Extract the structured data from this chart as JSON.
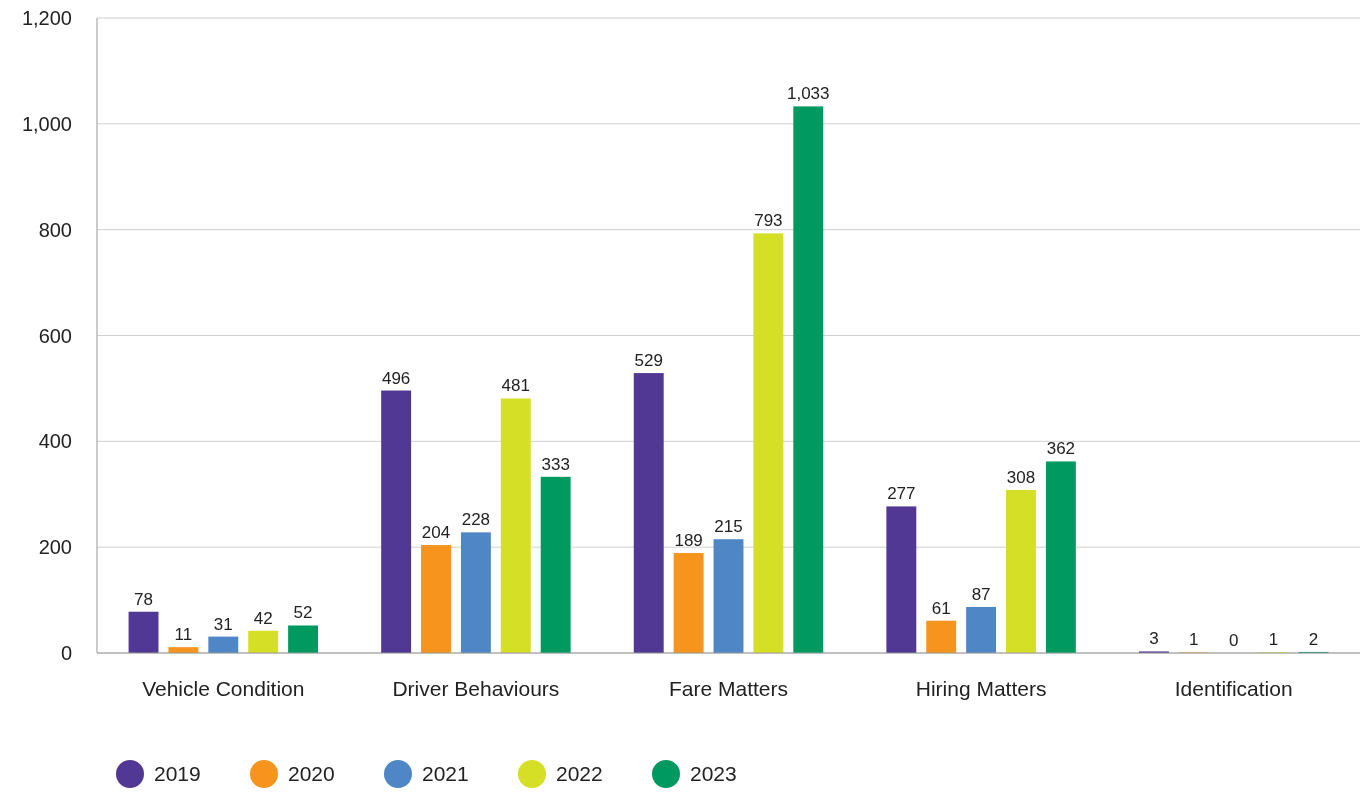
{
  "chart_data": {
    "type": "bar",
    "categories": [
      "Vehicle Condition",
      "Driver Behaviours",
      "Fare Matters",
      "Hiring Matters",
      "Identification"
    ],
    "series": [
      {
        "name": "2019",
        "color": "#523895",
        "values": [
          78,
          496,
          529,
          277,
          3
        ],
        "value_labels": [
          "78",
          "496",
          "529",
          "277",
          "3"
        ]
      },
      {
        "name": "2020",
        "color": "#f7941d",
        "values": [
          11,
          204,
          189,
          61,
          1
        ],
        "value_labels": [
          "11",
          "204",
          "189",
          "61",
          "1"
        ]
      },
      {
        "name": "2021",
        "color": "#4f86c6",
        "values": [
          31,
          228,
          215,
          87,
          0
        ],
        "value_labels": [
          "31",
          "228",
          "215",
          "87",
          "0"
        ]
      },
      {
        "name": "2022",
        "color": "#d4df25",
        "values": [
          42,
          481,
          793,
          308,
          1
        ],
        "value_labels": [
          "42",
          "481",
          "793",
          "308",
          "1"
        ]
      },
      {
        "name": "2023",
        "color": "#009a61",
        "values": [
          52,
          333,
          1033,
          362,
          2
        ],
        "value_labels": [
          "52",
          "333",
          "1,033",
          "362",
          "2"
        ]
      }
    ],
    "ylim": [
      0,
      1200
    ],
    "yticks": [
      0,
      200,
      400,
      600,
      800,
      {
        "value": 1000,
        "label": "1,000"
      },
      {
        "value": 1200,
        "label": "1,200"
      }
    ],
    "grid": "y",
    "legend": "bottom left"
  }
}
